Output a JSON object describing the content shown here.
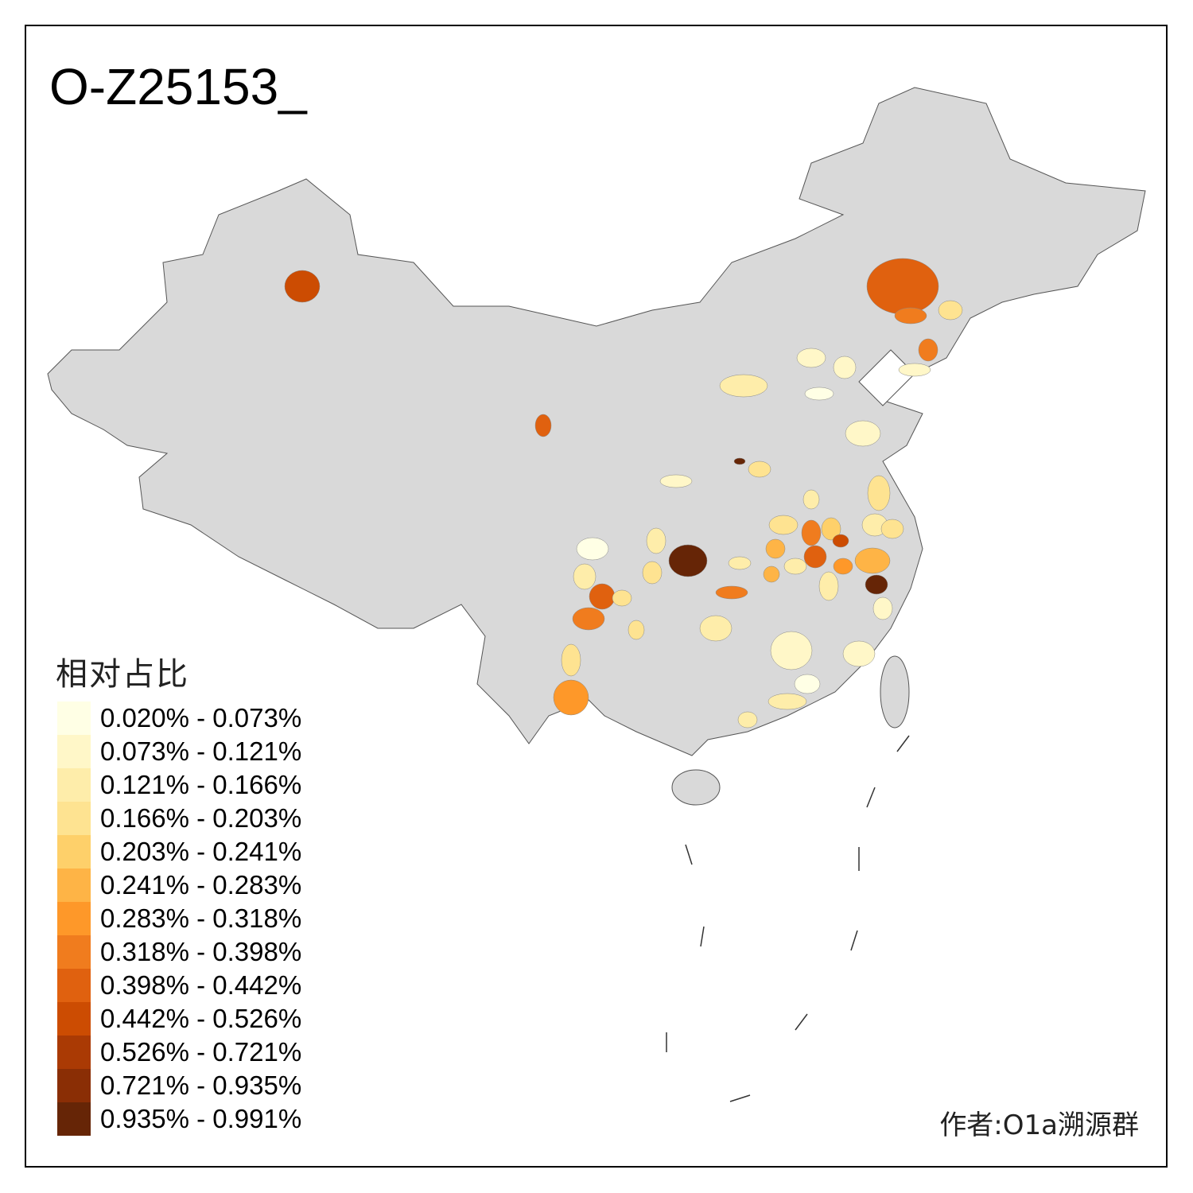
{
  "title": "O-Z25153_",
  "legend": {
    "title": "相对占比",
    "classes": [
      {
        "label": "0.020% - 0.073%",
        "color": "#FFFFE5"
      },
      {
        "label": "0.073% - 0.121%",
        "color": "#FFF7C8"
      },
      {
        "label": "0.121% - 0.166%",
        "color": "#FEEDAA"
      },
      {
        "label": "0.166% - 0.203%",
        "color": "#FEE391"
      },
      {
        "label": "0.203% - 0.241%",
        "color": "#FED06A"
      },
      {
        "label": "0.241% - 0.283%",
        "color": "#FEB446"
      },
      {
        "label": "0.283% - 0.318%",
        "color": "#FE9829"
      },
      {
        "label": "0.318% - 0.398%",
        "color": "#F07C1E"
      },
      {
        "label": "0.398% - 0.442%",
        "color": "#E0610F"
      },
      {
        "label": "0.442% - 0.526%",
        "color": "#CC4C02"
      },
      {
        "label": "0.526% - 0.721%",
        "color": "#AA3A04"
      },
      {
        "label": "0.721% - 0.935%",
        "color": "#8A2E05"
      },
      {
        "label": "0.935% - 0.991%",
        "color": "#662506"
      }
    ]
  },
  "colors": {
    "no_data": "#D9D9D9",
    "border": "#555555"
  },
  "region_classes": [
    9,
    8,
    7,
    3,
    7,
    1,
    8,
    2,
    1,
    1,
    0,
    1,
    12,
    3,
    1,
    3,
    2,
    3,
    2,
    3,
    7,
    4,
    9,
    8,
    5,
    2,
    5,
    5,
    12,
    6,
    12,
    7,
    2,
    0,
    2,
    2,
    3,
    8,
    7,
    3,
    3,
    2,
    2,
    1,
    1,
    1,
    0,
    2,
    2,
    3,
    6
  ],
  "author": "作者:O1a溯源群"
}
